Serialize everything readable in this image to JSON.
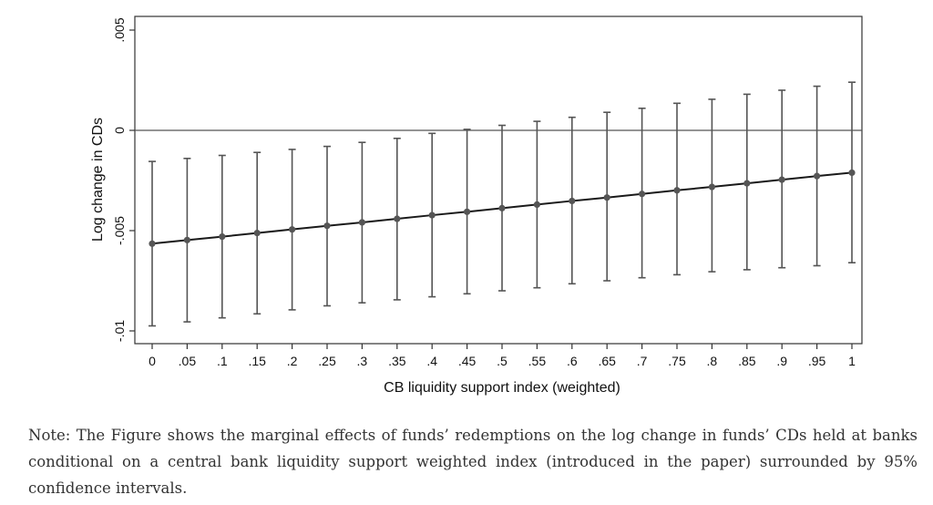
{
  "chart_data": {
    "type": "line",
    "title": "",
    "xlabel": "CB liquidity support index (weighted)",
    "ylabel": "Log change in CDs",
    "xlim": [
      0,
      1
    ],
    "ylim": [
      -0.0105,
      0.0055
    ],
    "x": [
      0,
      0.05,
      0.1,
      0.15,
      0.2,
      0.25,
      0.3,
      0.35,
      0.4,
      0.45,
      0.5,
      0.55,
      0.6,
      0.65,
      0.7,
      0.75,
      0.8,
      0.85,
      0.9,
      0.95,
      1
    ],
    "x_tick_labels": [
      "0",
      ".05",
      ".1",
      ".15",
      ".2",
      ".25",
      ".3",
      ".35",
      ".4",
      ".45",
      ".5",
      ".55",
      ".6",
      ".65",
      ".7",
      ".75",
      ".8",
      ".85",
      ".9",
      ".95",
      "1"
    ],
    "y_ticks": [
      0.005,
      0,
      -0.005,
      -0.01
    ],
    "y_tick_labels": [
      ".005",
      "0",
      "-.005",
      "-.01"
    ],
    "reference_line_y": 0,
    "grid": false,
    "series": [
      {
        "values": [
          -0.00565,
          -0.00547,
          -0.0053,
          -0.00512,
          -0.00494,
          -0.00476,
          -0.00459,
          -0.00441,
          -0.00423,
          -0.00406,
          -0.00388,
          -0.0037,
          -0.00352,
          -0.00335,
          -0.00317,
          -0.00299,
          -0.00282,
          -0.00264,
          -0.00246,
          -0.00228,
          -0.00211
        ],
        "ci_lower": [
          -0.00975,
          -0.00955,
          -0.00935,
          -0.00915,
          -0.00895,
          -0.00875,
          -0.0086,
          -0.00845,
          -0.0083,
          -0.00815,
          -0.008,
          -0.00785,
          -0.00765,
          -0.0075,
          -0.00735,
          -0.0072,
          -0.00705,
          -0.00695,
          -0.00685,
          -0.00675,
          -0.0066
        ],
        "ci_upper": [
          -0.00155,
          -0.0014,
          -0.00125,
          -0.0011,
          -0.00095,
          -0.0008,
          -0.0006,
          -0.0004,
          -0.00015,
          5e-05,
          0.00025,
          0.00045,
          0.00065,
          0.0009,
          0.0011,
          0.00135,
          0.00155,
          0.0018,
          0.002,
          0.0022,
          0.0024
        ],
        "color": "#555555"
      }
    ]
  },
  "note": "Note: The Figure shows the marginal effects of funds’ redemptions on the log change in funds’ CDs held at banks conditional on a central bank liquidity support weighted index (introduced in the paper) surrounded by 95% confidence intervals."
}
